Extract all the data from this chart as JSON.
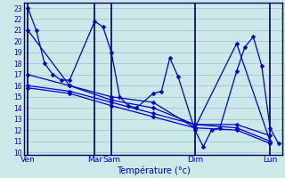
{
  "background_color": "#cce8e8",
  "grid_color": "#99cccc",
  "line_color": "#0000cc",
  "separator_color": "#000066",
  "xlabel": "Température (°c)",
  "ylim": [
    9.8,
    23.5
  ],
  "yticks": [
    10,
    11,
    12,
    13,
    14,
    15,
    16,
    17,
    18,
    19,
    20,
    21,
    22,
    23
  ],
  "xlim": [
    -0.5,
    30.5
  ],
  "xsep_positions": [
    0,
    8,
    10,
    20,
    29
  ],
  "xsep_labels": [
    "Ven",
    "Mar",
    "Sam",
    "Dim",
    "Lun"
  ],
  "series": [
    [
      0,
      23.0,
      1,
      21.0,
      2,
      18.0,
      3,
      17.0,
      4,
      16.5,
      5,
      16.5,
      8,
      21.8,
      9,
      21.3,
      10,
      19.0,
      11,
      15.0,
      12,
      14.2,
      13,
      14.0,
      15,
      15.3,
      16,
      15.5,
      17,
      18.5,
      18,
      16.8,
      20,
      12.0,
      21,
      10.5,
      22,
      12.0,
      23,
      12.2,
      25,
      17.3,
      26,
      19.5,
      27,
      20.4,
      28,
      17.8,
      29,
      12.2,
      30,
      10.8
    ],
    [
      0,
      21.0,
      5,
      16.0,
      10,
      15.0,
      15,
      14.5,
      20,
      12.2,
      25,
      19.8,
      29,
      11.0
    ],
    [
      0,
      17.0,
      5,
      16.0,
      10,
      14.7,
      15,
      14.0,
      20,
      12.5,
      25,
      12.5,
      29,
      11.5
    ],
    [
      0,
      16.0,
      5,
      15.5,
      10,
      14.5,
      15,
      13.5,
      20,
      12.5,
      25,
      12.2,
      29,
      11.0
    ],
    [
      0,
      15.8,
      5,
      15.3,
      10,
      14.2,
      15,
      13.2,
      20,
      12.2,
      25,
      12.0,
      29,
      10.8
    ]
  ],
  "ytick_fontsize": 5.5,
  "xtick_fontsize": 6.5,
  "xlabel_fontsize": 7
}
